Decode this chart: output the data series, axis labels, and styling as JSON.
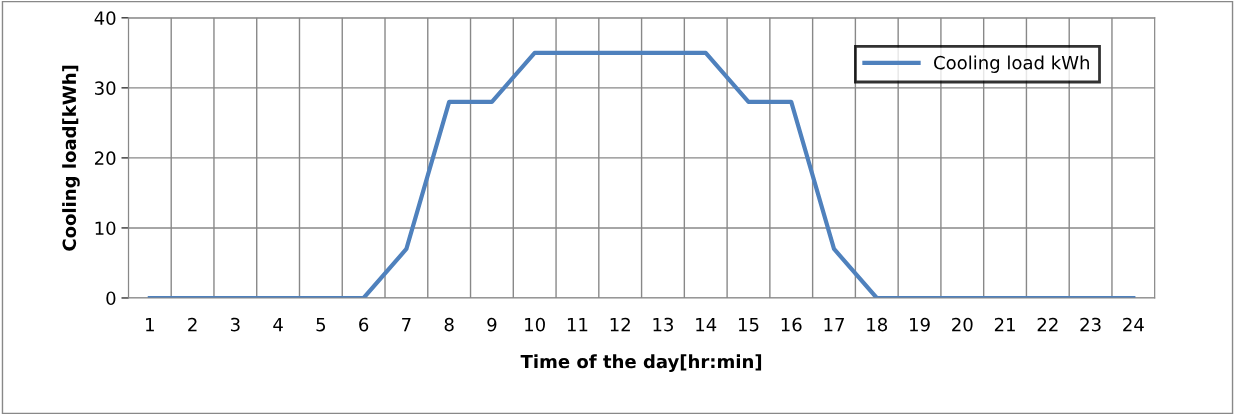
{
  "chart_data": {
    "type": "line",
    "xlabel": "Time of the day[hr:min]",
    "ylabel": "Cooling load[kWh]",
    "categories": [
      "1",
      "2",
      "3",
      "4",
      "5",
      "6",
      "7",
      "8",
      "9",
      "10",
      "11",
      "12",
      "13",
      "14",
      "15",
      "16",
      "17",
      "18",
      "19",
      "20",
      "21",
      "22",
      "23",
      "24"
    ],
    "series": [
      {
        "name": "Cooling load kWh",
        "color": "#4f81bd",
        "values": [
          0,
          0,
          0,
          0,
          0,
          0,
          7,
          28,
          28,
          35,
          35,
          35,
          35,
          35,
          28,
          28,
          7,
          0,
          0,
          0,
          0,
          0,
          0,
          0
        ]
      }
    ],
    "ylim": [
      0,
      40
    ],
    "yticks": [
      0,
      10,
      20,
      30,
      40
    ],
    "grid": true,
    "legend": "top right",
    "marker": "none",
    "line_style": "solid"
  }
}
